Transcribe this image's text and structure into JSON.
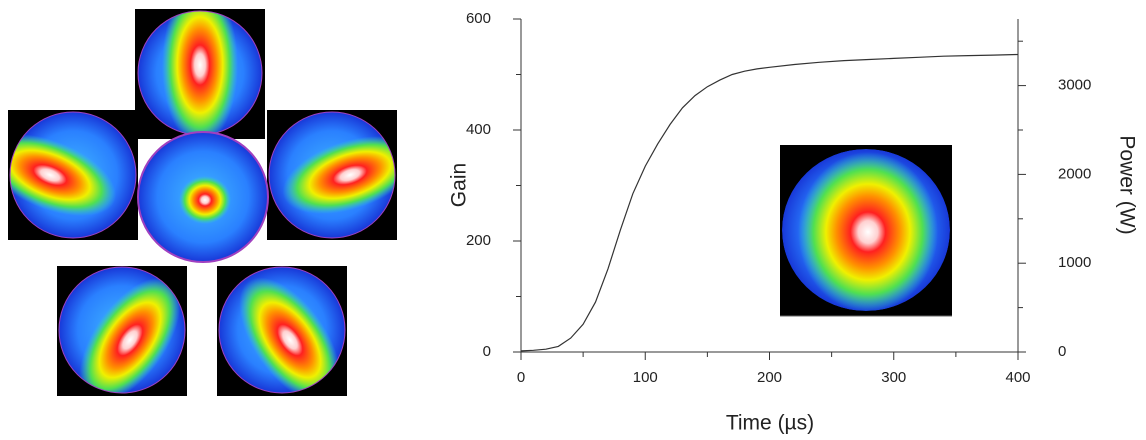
{
  "chart_data": {
    "type": "line",
    "x_label": "Time (µs)",
    "y_label": "Gain",
    "y2_label": "Power (W)",
    "x": [
      0,
      10,
      20,
      30,
      40,
      50,
      60,
      70,
      80,
      90,
      100,
      110,
      120,
      130,
      140,
      150,
      160,
      170,
      180,
      190,
      200,
      220,
      240,
      260,
      280,
      300,
      320,
      340,
      360,
      380,
      400
    ],
    "values": [
      2,
      3,
      5,
      10,
      25,
      50,
      90,
      150,
      220,
      285,
      335,
      375,
      410,
      440,
      462,
      478,
      490,
      500,
      506,
      510,
      513,
      518,
      522,
      525,
      527,
      529,
      531,
      533,
      534,
      535,
      536
    ],
    "color": "#333333",
    "xlim": [
      0,
      400
    ],
    "xticks": [
      0,
      100,
      200,
      300,
      400
    ],
    "ylim": [
      0,
      600
    ],
    "yticks": [
      0,
      200,
      400,
      600
    ],
    "y2lim": [
      0,
      3750
    ],
    "y2ticks": [
      0,
      1000,
      2000,
      3000
    ]
  }
}
